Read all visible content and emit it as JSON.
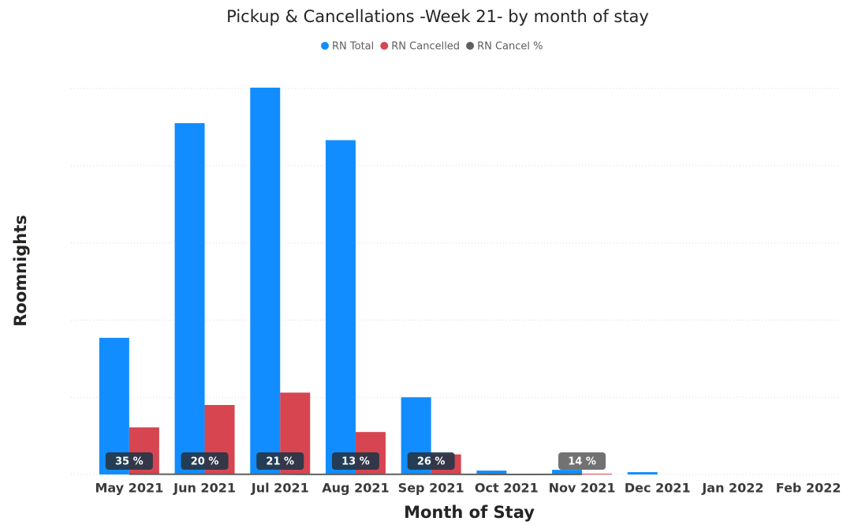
{
  "chart_data": {
    "type": "bar",
    "title": "Pickup & Cancellations -Week 21- by month of stay",
    "x_label": "Month of Stay",
    "y_label": "Roomnights",
    "categories": [
      "May 2021",
      "Jun 2021",
      "Jul 2021",
      "Aug 2021",
      "Sep 2021",
      "Oct 2021",
      "Nov 2021",
      "Dec 2021",
      "Jan 2022",
      "Feb 2022"
    ],
    "series": [
      {
        "name": "RN Total",
        "color": "#118dff",
        "type": "bar",
        "values": [
          177,
          455,
          501,
          433,
          100,
          5,
          6,
          3,
          null,
          null
        ]
      },
      {
        "name": "RN Cancelled",
        "color": "#d64550",
        "type": "bar",
        "values": [
          61,
          90,
          106,
          55,
          26,
          0,
          1,
          0,
          null,
          null
        ]
      },
      {
        "name": "RN Cancel %",
        "color": "#5f5f5f",
        "type": "line",
        "values": [
          0.35,
          0.2,
          0.21,
          0.13,
          0.26,
          0,
          0.14,
          null,
          null,
          null
        ],
        "value_labels": [
          "35 %",
          "20 %",
          "21 %",
          "13 %",
          "26 %",
          null,
          "14 %",
          null,
          null,
          null
        ]
      }
    ],
    "ylim": [
      0,
      500
    ],
    "yticks": [
      0,
      100,
      200,
      300,
      400,
      500
    ],
    "grid": true,
    "legend": "top"
  }
}
